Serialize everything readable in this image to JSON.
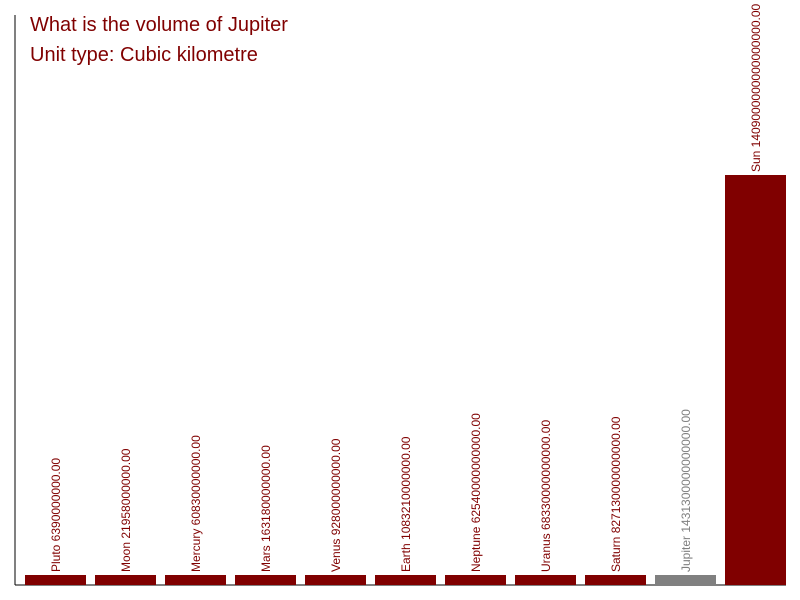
{
  "chart_data": {
    "type": "bar",
    "title": "What is the volume of Jupiter",
    "subtitle": "Unit type: Cubic kilometre",
    "categories": [
      "Pluto",
      "Moon",
      "Mercury",
      "Mars",
      "Venus",
      "Earth",
      "Neptune",
      "Uranus",
      "Saturn",
      "Jupiter",
      "Sun"
    ],
    "values": [
      6390000000,
      21958000000,
      60830000000,
      163180000000,
      928000000000,
      1083210000000,
      62540000000000,
      68330000000000,
      827130000000000,
      1431300000000000,
      1409000000000000000
    ],
    "labels": [
      "Pluto 6390000000.00",
      "Moon 21958000000.00",
      "Mercury 60830000000.00",
      "Mars 163180000000.00",
      "Venus 928000000000.00",
      "Earth 1083210000000.00",
      "Neptune 62540000000000.00",
      "Uranus 68330000000000.00",
      "Saturn 827130000000000.00",
      "Jupiter 1431300000000000.00",
      "Sun 1409000000000000000.00"
    ],
    "highlight": "Jupiter",
    "colors": {
      "bar": "#800000",
      "highlight": "#808080",
      "text": "#800000",
      "axis": "#000000"
    },
    "xlabel": "",
    "ylabel": "",
    "grid": false
  }
}
